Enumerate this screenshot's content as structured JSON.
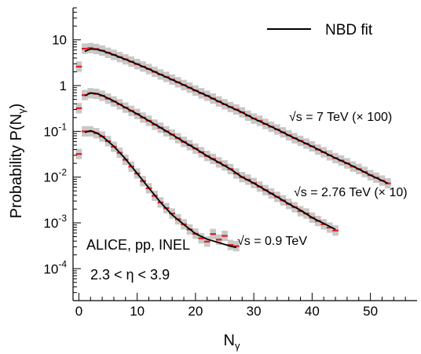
{
  "chart_data": {
    "type": "scatter",
    "xlabel": "N",
    "xlabel_sub": "γ",
    "ylabel": "Probability P(N",
    "ylabel_sub": "γ",
    "ylabel_close": ")",
    "xlim": [
      -1,
      58
    ],
    "ylim": [
      2e-05,
      50
    ],
    "yscale": "log",
    "x_ticks": [
      0,
      10,
      20,
      30,
      40,
      50
    ],
    "x_tick_labels": [
      "0",
      "10",
      "20",
      "30",
      "40",
      "50"
    ],
    "y_ticks": [
      0.0001,
      0.001,
      0.01,
      0.1,
      1,
      10
    ],
    "y_tick_labels": [
      {
        "base": "10",
        "exp": "-4"
      },
      {
        "base": "10",
        "exp": "-3"
      },
      {
        "base": "10",
        "exp": "-2"
      },
      {
        "base": "10",
        "exp": "-1"
      },
      {
        "base": "1",
        "exp": ""
      },
      {
        "base": "10",
        "exp": ""
      }
    ],
    "legend": {
      "position": "top-right",
      "entries": [
        {
          "label": "NBD fit",
          "style": "black-line"
        }
      ]
    },
    "annotations": {
      "experiment": "ALICE, pp, INEL",
      "eta_range": "2.3 < η < 3.9",
      "s09": "√s = 0.9 TeV",
      "s276": "√s = 2.76 TeV (× 10)",
      "s7": "√s = 7 TeV (× 100)"
    },
    "colors": {
      "data": "#e41a1c",
      "syst_band": "#c8c8c8",
      "fit": "#000000"
    },
    "series": [
      {
        "label_key": "s09",
        "points": [
          [
            0,
            0.032
          ],
          [
            1,
            0.1
          ],
          [
            2,
            0.1
          ],
          [
            3,
            0.091
          ],
          [
            4,
            0.077
          ],
          [
            5,
            0.061
          ],
          [
            6,
            0.046
          ],
          [
            7,
            0.034
          ],
          [
            8,
            0.024
          ],
          [
            9,
            0.017
          ],
          [
            10,
            0.012
          ],
          [
            11,
            0.0082
          ],
          [
            12,
            0.0057
          ],
          [
            13,
            0.0039
          ],
          [
            14,
            0.0028
          ],
          [
            15,
            0.0021
          ],
          [
            16,
            0.0016
          ],
          [
            17,
            0.0012
          ],
          [
            18,
            0.00093
          ],
          [
            19,
            0.00072
          ],
          [
            20,
            0.00058
          ],
          [
            21,
            0.00046
          ],
          [
            22,
            0.00039
          ],
          [
            23,
            0.00057
          ],
          [
            24,
            0.00043
          ],
          [
            25,
            0.00052
          ],
          [
            26,
            0.00033
          ],
          [
            27,
            0.00031
          ]
        ],
        "fit": [
          [
            1,
            0.095
          ],
          [
            2,
            0.103
          ],
          [
            3,
            0.093
          ],
          [
            4,
            0.078
          ],
          [
            6,
            0.047
          ],
          [
            8,
            0.025
          ],
          [
            10,
            0.012
          ],
          [
            12,
            0.0058
          ],
          [
            14,
            0.0028
          ],
          [
            16,
            0.0015
          ],
          [
            18,
            0.00092
          ],
          [
            20,
            0.00058
          ],
          [
            22,
            0.00044
          ],
          [
            24,
            0.00037
          ],
          [
            26,
            0.00031
          ],
          [
            27,
            0.00029
          ]
        ]
      },
      {
        "label_key": "s276",
        "points": [
          [
            0,
            0.32
          ],
          [
            1,
            0.62
          ],
          [
            2,
            0.68
          ],
          [
            3,
            0.66
          ],
          [
            4,
            0.6
          ],
          [
            5,
            0.52
          ],
          [
            6,
            0.45
          ],
          [
            7,
            0.39
          ],
          [
            8,
            0.33
          ],
          [
            9,
            0.28
          ],
          [
            10,
            0.24
          ],
          [
            11,
            0.2
          ],
          [
            12,
            0.17
          ],
          [
            13,
            0.14
          ],
          [
            14,
            0.12
          ],
          [
            15,
            0.1
          ],
          [
            16,
            0.085
          ],
          [
            17,
            0.071
          ],
          [
            18,
            0.059
          ],
          [
            19,
            0.05
          ],
          [
            20,
            0.042
          ],
          [
            21,
            0.035
          ],
          [
            22,
            0.029
          ],
          [
            23,
            0.025
          ],
          [
            24,
            0.021
          ],
          [
            25,
            0.018
          ],
          [
            26,
            0.015
          ],
          [
            27,
            0.012
          ],
          [
            28,
            0.01
          ],
          [
            29,
            0.0088
          ],
          [
            30,
            0.0074
          ],
          [
            31,
            0.0062
          ],
          [
            32,
            0.0052
          ],
          [
            33,
            0.0044
          ],
          [
            34,
            0.0037
          ],
          [
            35,
            0.0031
          ],
          [
            36,
            0.0026
          ],
          [
            37,
            0.0022
          ],
          [
            38,
            0.0018
          ],
          [
            39,
            0.0016
          ],
          [
            40,
            0.0013
          ],
          [
            41,
            0.0011
          ],
          [
            42,
            0.00093
          ],
          [
            43,
            0.00079
          ],
          [
            44,
            0.00068
          ]
        ],
        "fit": [
          [
            1,
            0.6
          ],
          [
            2,
            0.69
          ],
          [
            3,
            0.67
          ],
          [
            4,
            0.61
          ],
          [
            6,
            0.46
          ],
          [
            8,
            0.33
          ],
          [
            10,
            0.24
          ],
          [
            12,
            0.17
          ],
          [
            14,
            0.12
          ],
          [
            16,
            0.085
          ],
          [
            18,
            0.059
          ],
          [
            20,
            0.042
          ],
          [
            22,
            0.029
          ],
          [
            24,
            0.021
          ],
          [
            26,
            0.015
          ],
          [
            28,
            0.01
          ],
          [
            30,
            0.0074
          ],
          [
            32,
            0.0052
          ],
          [
            34,
            0.0037
          ],
          [
            36,
            0.0026
          ],
          [
            38,
            0.0019
          ],
          [
            40,
            0.0013
          ],
          [
            42,
            0.00097
          ],
          [
            44,
            0.00072
          ]
        ]
      },
      {
        "label_key": "s7",
        "points": [
          [
            0,
            2.6
          ],
          [
            1,
            6.4
          ],
          [
            2,
            6.6
          ],
          [
            3,
            6.3
          ],
          [
            4,
            5.8
          ],
          [
            5,
            5.2
          ],
          [
            6,
            4.7
          ],
          [
            7,
            4.2
          ],
          [
            8,
            3.75
          ],
          [
            9,
            3.35
          ],
          [
            10,
            2.95
          ],
          [
            11,
            2.6
          ],
          [
            12,
            2.3
          ],
          [
            13,
            2.0
          ],
          [
            14,
            1.75
          ],
          [
            15,
            1.55
          ],
          [
            16,
            1.35
          ],
          [
            17,
            1.18
          ],
          [
            18,
            1.03
          ],
          [
            19,
            0.9
          ],
          [
            20,
            0.78
          ],
          [
            21,
            0.68
          ],
          [
            22,
            0.6
          ],
          [
            23,
            0.52
          ],
          [
            24,
            0.45
          ],
          [
            25,
            0.39
          ],
          [
            26,
            0.34
          ],
          [
            27,
            0.3
          ],
          [
            28,
            0.26
          ],
          [
            29,
            0.22
          ],
          [
            30,
            0.19
          ],
          [
            31,
            0.17
          ],
          [
            32,
            0.145
          ],
          [
            33,
            0.126
          ],
          [
            34,
            0.11
          ],
          [
            35,
            0.095
          ],
          [
            36,
            0.082
          ],
          [
            37,
            0.071
          ],
          [
            38,
            0.062
          ],
          [
            39,
            0.054
          ],
          [
            40,
            0.047
          ],
          [
            41,
            0.04
          ],
          [
            42,
            0.035
          ],
          [
            43,
            0.03
          ],
          [
            44,
            0.026
          ],
          [
            45,
            0.023
          ],
          [
            46,
            0.02
          ],
          [
            47,
            0.017
          ],
          [
            48,
            0.015
          ],
          [
            49,
            0.013
          ],
          [
            50,
            0.011
          ],
          [
            51,
            0.0097
          ],
          [
            52,
            0.0084
          ],
          [
            53,
            0.0073
          ]
        ],
        "fit": [
          [
            1,
            5.6
          ],
          [
            2,
            6.3
          ],
          [
            3,
            6.2
          ],
          [
            4,
            5.8
          ],
          [
            6,
            4.7
          ],
          [
            8,
            3.75
          ],
          [
            10,
            2.95
          ],
          [
            12,
            2.3
          ],
          [
            14,
            1.75
          ],
          [
            16,
            1.35
          ],
          [
            18,
            1.03
          ],
          [
            20,
            0.78
          ],
          [
            22,
            0.6
          ],
          [
            24,
            0.45
          ],
          [
            26,
            0.34
          ],
          [
            28,
            0.26
          ],
          [
            30,
            0.19
          ],
          [
            32,
            0.145
          ],
          [
            34,
            0.11
          ],
          [
            36,
            0.082
          ],
          [
            38,
            0.062
          ],
          [
            40,
            0.047
          ],
          [
            42,
            0.035
          ],
          [
            44,
            0.026
          ],
          [
            46,
            0.02
          ],
          [
            48,
            0.015
          ],
          [
            50,
            0.011
          ],
          [
            52,
            0.0084
          ],
          [
            53,
            0.0073
          ]
        ]
      }
    ]
  }
}
